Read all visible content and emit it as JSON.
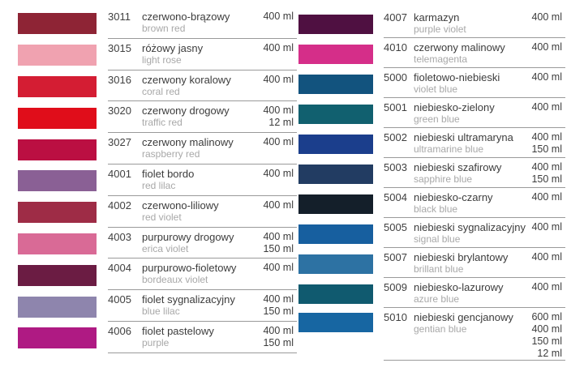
{
  "page": {
    "background": "#ffffff",
    "separator_color": "#9a9a9a",
    "code_text_color": "#404040",
    "polish_name_color": "#3c3c3c",
    "english_name_color": "#a8a8a8",
    "volume_text_color": "#3c3c3c"
  },
  "columns": [
    {
      "name": "left",
      "entries": [
        {
          "code": "3011",
          "name_pl": "czerwono-brązowy",
          "name_en": "brown red",
          "volumes": [
            "400 ml"
          ],
          "color": "#8e2435"
        },
        {
          "code": "3015",
          "name_pl": "różowy jasny",
          "name_en": "light rose",
          "volumes": [
            "400 ml"
          ],
          "color": "#f0a2b0"
        },
        {
          "code": "3016",
          "name_pl": "czerwony koralowy",
          "name_en": "coral red",
          "volumes": [
            "400 ml"
          ],
          "color": "#d41d33"
        },
        {
          "code": "3020",
          "name_pl": "czerwony drogowy",
          "name_en": "traffic red",
          "volumes": [
            "400 ml",
            "12 ml"
          ],
          "color": "#e00d1a"
        },
        {
          "code": "3027",
          "name_pl": "czerwony malinowy",
          "name_en": "raspberry red",
          "volumes": [
            "400 ml"
          ],
          "color": "#bb0f42"
        },
        {
          "code": "4001",
          "name_pl": "fiolet bordo",
          "name_en": "red lilac",
          "volumes": [
            "400 ml"
          ],
          "color": "#8a6095"
        },
        {
          "code": "4002",
          "name_pl": "czerwono-liliowy",
          "name_en": "red violet",
          "volumes": [
            "400 ml"
          ],
          "color": "#9e2c46"
        },
        {
          "code": "4003",
          "name_pl": "purpurowy drogowy",
          "name_en": "erica violet",
          "volumes": [
            "400 ml",
            "150 ml"
          ],
          "color": "#d96a96"
        },
        {
          "code": "4004",
          "name_pl": "purpurowo-fioletowy",
          "name_en": "bordeaux violet",
          "volumes": [
            "400 ml"
          ],
          "color": "#6b1c43"
        },
        {
          "code": "4005",
          "name_pl": "fiolet sygnalizacyjny",
          "name_en": "blue lilac",
          "volumes": [
            "400 ml",
            "150 ml"
          ],
          "color": "#8e85ad"
        },
        {
          "code": "4006",
          "name_pl": "fiolet pastelowy",
          "name_en": "purple",
          "volumes": [
            "400 ml",
            "150 ml"
          ],
          "color": "#af1a83"
        }
      ]
    },
    {
      "name": "right",
      "entries": [
        {
          "code": "4007",
          "name_pl": "karmazyn",
          "name_en": "purple violet",
          "volumes": [
            "400 ml"
          ],
          "color": "#4f1041"
        },
        {
          "code": "4010",
          "name_pl": "czerwony malinowy",
          "name_en": "telemagenta",
          "volumes": [
            "400 ml"
          ],
          "color": "#d52e89"
        },
        {
          "code": "5000",
          "name_pl": "fioletowo-niebieski",
          "name_en": "violet blue",
          "volumes": [
            "400 ml"
          ],
          "color": "#12537e"
        },
        {
          "code": "5001",
          "name_pl": "niebiesko-zielony",
          "name_en": "green blue",
          "volumes": [
            "400 ml"
          ],
          "color": "#11606f"
        },
        {
          "code": "5002",
          "name_pl": "niebieski ultramaryna",
          "name_en": "ultramarine blue",
          "volumes": [
            "400 ml",
            "150 ml"
          ],
          "color": "#1b3e8c"
        },
        {
          "code": "5003",
          "name_pl": "niebieski szafirowy",
          "name_en": "sapphire blue",
          "volumes": [
            "400 ml",
            "150 ml"
          ],
          "color": "#223c62"
        },
        {
          "code": "5004",
          "name_pl": "niebiesko-czarny",
          "name_en": "black blue",
          "volumes": [
            "400 ml"
          ],
          "color": "#141f2a"
        },
        {
          "code": "5005",
          "name_pl": "niebieski sygnalizacyjny",
          "name_en": "signal blue",
          "volumes": [
            "400 ml"
          ],
          "color": "#175f9f"
        },
        {
          "code": "5007",
          "name_pl": "niebieski brylantowy",
          "name_en": "brillant blue",
          "volumes": [
            "400 ml"
          ],
          "color": "#2d72a3"
        },
        {
          "code": "5009",
          "name_pl": "niebiesko-lazurowy",
          "name_en": "azure blue",
          "volumes": [
            "400 ml"
          ],
          "color": "#105a6f"
        },
        {
          "code": "5010",
          "name_pl": "niebieski gencjanowy",
          "name_en": "gentian blue",
          "volumes": [
            "600 ml",
            "400 ml",
            "150 ml",
            "12 ml"
          ],
          "color": "#1766a2"
        }
      ]
    }
  ]
}
